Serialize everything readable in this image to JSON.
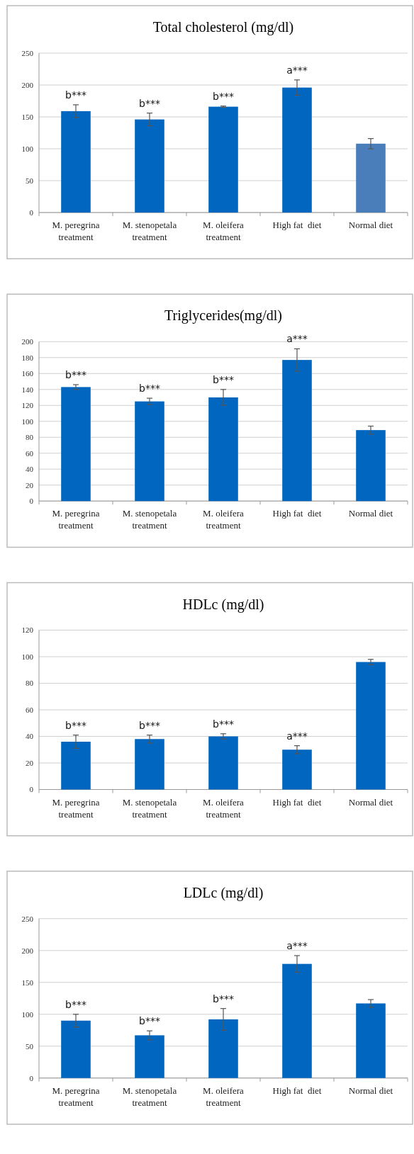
{
  "chart_data": [
    {
      "type": "bar",
      "title": "Total cholesterol (mg/dl)",
      "categories": [
        "M. peregrina treatment",
        "M. stenopetala treatment",
        "M. oleifera treatment",
        "High fat  diet",
        "Normal diet"
      ],
      "values": [
        159,
        146,
        166,
        196,
        108
      ],
      "errors": [
        10,
        10,
        1,
        12,
        8
      ],
      "colors": [
        "#0066bf",
        "#0066bf",
        "#0066bf",
        "#0066bf",
        "#4a7ebb"
      ],
      "ylim": [
        0,
        250
      ],
      "yticks": [
        0,
        50,
        100,
        150,
        200,
        250
      ],
      "grid": "y",
      "annotations": [
        {
          "text": "b***",
          "x": "M. peregrina treatment",
          "y": 159
        },
        {
          "text": "b***",
          "x": "M. stenopetala treatment",
          "y": 146
        },
        {
          "text": "b***",
          "x": "M. oleifera treatment",
          "y": 166
        },
        {
          "text": "a***",
          "x": "High fat  diet",
          "y": 196
        }
      ]
    },
    {
      "type": "bar",
      "title": "Triglycerides(mg/dl)",
      "categories": [
        "M. peregrina treatment",
        "M. stenopetala treatment",
        "M. oleifera treatment",
        "High fat  diet",
        "Normal diet"
      ],
      "values": [
        143,
        125,
        130,
        177,
        89
      ],
      "errors": [
        3,
        4,
        10,
        14,
        5
      ],
      "colors": [
        "#0066bf",
        "#0066bf",
        "#0066bf",
        "#0066bf",
        "#0066bf"
      ],
      "ylim": [
        0,
        200
      ],
      "yticks": [
        0,
        20,
        40,
        60,
        80,
        100,
        120,
        140,
        160,
        180,
        200
      ],
      "grid": "y",
      "annotations": [
        {
          "text": "b***",
          "x": "M. peregrina treatment",
          "y": 143
        },
        {
          "text": "b***",
          "x": "M. stenopetala treatment",
          "y": 125
        },
        {
          "text": "b***",
          "x": "M. oleifera treatment",
          "y": 130
        },
        {
          "text": "a***",
          "x": "High fat  diet",
          "y": 177
        }
      ]
    },
    {
      "type": "bar",
      "title": "HDLc (mg/dl)",
      "categories": [
        "M. peregrina treatment",
        "M. stenopetala treatment",
        "M. oleifera treatment",
        "High fat  diet",
        "Normal diet"
      ],
      "values": [
        36,
        38,
        40,
        30,
        96
      ],
      "errors": [
        5,
        3,
        2,
        3,
        2
      ],
      "colors": [
        "#0066bf",
        "#0066bf",
        "#0066bf",
        "#0066bf",
        "#0066bf"
      ],
      "ylim": [
        0,
        120
      ],
      "yticks": [
        0,
        20,
        40,
        60,
        80,
        100,
        120
      ],
      "grid": "y",
      "annotations": [
        {
          "text": "b***",
          "x": "M. peregrina treatment",
          "y": 36
        },
        {
          "text": "b***",
          "x": "M. stenopetala treatment",
          "y": 38
        },
        {
          "text": "b***",
          "x": "M. oleifera treatment",
          "y": 40
        },
        {
          "text": "a***",
          "x": "High fat  diet",
          "y": 30
        }
      ]
    },
    {
      "type": "bar",
      "title": "LDLc (mg/dl)",
      "categories": [
        "M. peregrina treatment",
        "M. stenopetala treatment",
        "M. oleifera treatment",
        "High fat  diet",
        "Normal diet"
      ],
      "values": [
        90,
        67,
        92,
        179,
        117
      ],
      "errors": [
        10,
        7,
        17,
        13,
        6
      ],
      "colors": [
        "#0066bf",
        "#0066bf",
        "#0066bf",
        "#0066bf",
        "#0066bf"
      ],
      "ylim": [
        0,
        250
      ],
      "yticks": [
        0,
        50,
        100,
        150,
        200,
        250
      ],
      "grid": "y",
      "annotations": [
        {
          "text": "b***",
          "x": "M. peregrina treatment",
          "y": 90
        },
        {
          "text": "b***",
          "x": "M. stenopetala treatment",
          "y": 67
        },
        {
          "text": "b***",
          "x": "M. oleifera treatment",
          "y": 92
        },
        {
          "text": "a***",
          "x": "High fat  diet",
          "y": 179
        }
      ]
    }
  ]
}
